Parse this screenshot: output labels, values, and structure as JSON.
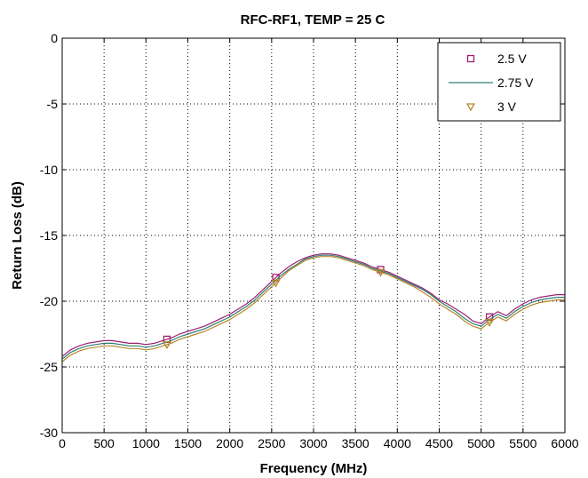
{
  "chart_data": {
    "type": "line",
    "title": "RFC-RF1, TEMP = 25 C",
    "xlabel": "Frequency (MHz)",
    "ylabel": "Return Loss (dB)",
    "xlim": [
      0,
      6000
    ],
    "ylim": [
      -30,
      0
    ],
    "xticks": [
      0,
      500,
      1000,
      1500,
      2000,
      2500,
      3000,
      3500,
      4000,
      4500,
      5000,
      5500,
      6000
    ],
    "yticks": [
      0,
      -5,
      -10,
      -15,
      -20,
      -25,
      -30
    ],
    "grid": true,
    "grid_style": "dotted",
    "legend_position": "top-right",
    "x": [
      0,
      100,
      200,
      300,
      400,
      500,
      600,
      700,
      800,
      900,
      1000,
      1100,
      1200,
      1300,
      1400,
      1500,
      1600,
      1700,
      1800,
      1900,
      2000,
      2100,
      2200,
      2300,
      2400,
      2500,
      2600,
      2700,
      2800,
      2900,
      3000,
      3100,
      3200,
      3300,
      3400,
      3500,
      3600,
      3700,
      3800,
      3900,
      4000,
      4100,
      4200,
      4300,
      4400,
      4500,
      4600,
      4700,
      4800,
      4900,
      5000,
      5100,
      5200,
      5300,
      5400,
      5500,
      5600,
      5700,
      5800,
      5900,
      6000
    ],
    "series": [
      {
        "name": "2.5 V",
        "color": "#9c1f6e",
        "marker": "square",
        "marker_x": [
          1250,
          2550,
          3800,
          5100
        ],
        "values": [
          -24.2,
          -23.7,
          -23.4,
          -23.2,
          -23.1,
          -23.0,
          -23.0,
          -23.1,
          -23.2,
          -23.2,
          -23.3,
          -23.2,
          -23.0,
          -22.8,
          -22.5,
          -22.3,
          -22.1,
          -21.9,
          -21.6,
          -21.3,
          -21.0,
          -20.6,
          -20.2,
          -19.7,
          -19.1,
          -18.5,
          -17.9,
          -17.4,
          -17.0,
          -16.7,
          -16.5,
          -16.4,
          -16.4,
          -16.5,
          -16.7,
          -16.9,
          -17.1,
          -17.4,
          -17.6,
          -17.8,
          -18.1,
          -18.4,
          -18.7,
          -19.0,
          -19.4,
          -19.9,
          -20.2,
          -20.6,
          -21.0,
          -21.5,
          -21.7,
          -21.2,
          -20.8,
          -21.1,
          -20.6,
          -20.2,
          -19.9,
          -19.7,
          -19.6,
          -19.5,
          -19.5
        ]
      },
      {
        "name": "2.75 V",
        "color": "#2f7f77",
        "marker": "none",
        "values": [
          -24.4,
          -23.9,
          -23.6,
          -23.4,
          -23.3,
          -23.2,
          -23.2,
          -23.3,
          -23.4,
          -23.4,
          -23.5,
          -23.4,
          -23.2,
          -23.0,
          -22.7,
          -22.5,
          -22.3,
          -22.1,
          -21.8,
          -21.5,
          -21.2,
          -20.8,
          -20.4,
          -19.9,
          -19.3,
          -18.7,
          -18.1,
          -17.6,
          -17.2,
          -16.8,
          -16.6,
          -16.5,
          -16.5,
          -16.6,
          -16.8,
          -17.0,
          -17.2,
          -17.5,
          -17.7,
          -17.9,
          -18.2,
          -18.5,
          -18.8,
          -19.1,
          -19.5,
          -20.0,
          -20.4,
          -20.8,
          -21.3,
          -21.7,
          -21.9,
          -21.4,
          -21.0,
          -21.3,
          -20.8,
          -20.4,
          -20.1,
          -19.9,
          -19.8,
          -19.7,
          -19.7
        ]
      },
      {
        "name": "3 V",
        "color": "#b8862a",
        "marker": "triangle-down",
        "marker_x": [
          1250,
          2550,
          3800,
          5100
        ],
        "values": [
          -24.6,
          -24.1,
          -23.8,
          -23.6,
          -23.5,
          -23.4,
          -23.4,
          -23.5,
          -23.6,
          -23.6,
          -23.7,
          -23.6,
          -23.4,
          -23.2,
          -22.9,
          -22.7,
          -22.5,
          -22.3,
          -22.0,
          -21.7,
          -21.4,
          -21.0,
          -20.6,
          -20.1,
          -19.5,
          -18.9,
          -18.3,
          -17.7,
          -17.3,
          -16.9,
          -16.7,
          -16.6,
          -16.6,
          -16.7,
          -16.9,
          -17.1,
          -17.3,
          -17.6,
          -17.8,
          -18.0,
          -18.3,
          -18.6,
          -18.9,
          -19.3,
          -19.7,
          -20.2,
          -20.6,
          -21.0,
          -21.5,
          -21.9,
          -22.1,
          -21.6,
          -21.2,
          -21.5,
          -21.0,
          -20.6,
          -20.3,
          -20.1,
          -20.0,
          -19.9,
          -19.9
        ]
      }
    ]
  }
}
